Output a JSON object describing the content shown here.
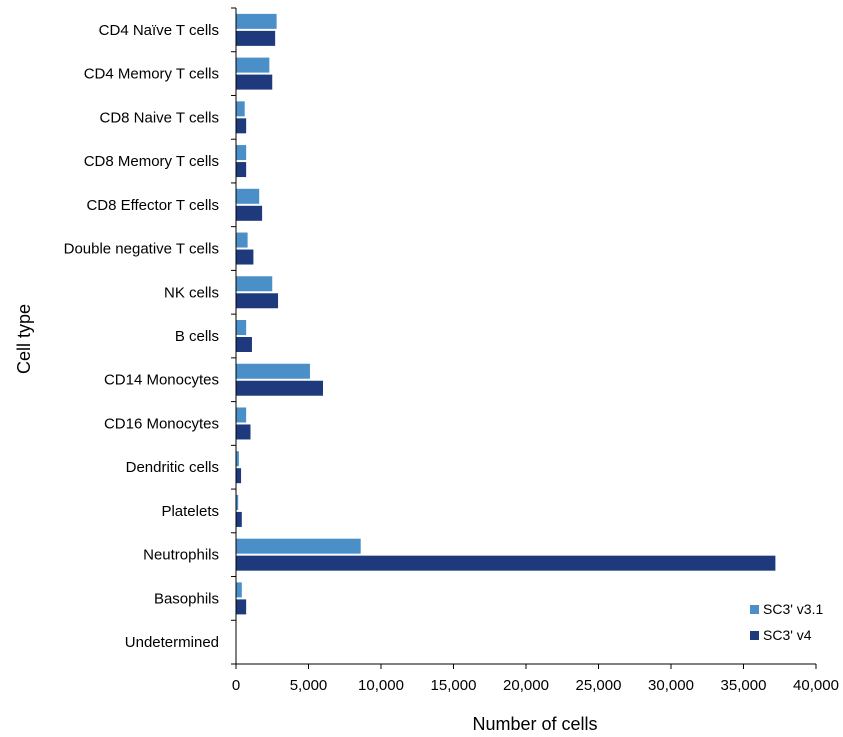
{
  "chart_data": {
    "type": "bar",
    "orientation": "horizontal",
    "categories": [
      "CD4 Naïve T cells",
      "CD4 Memory T cells",
      "CD8 Naive T cells",
      "CD8 Memory T cells",
      "CD8 Effector T cells",
      "Double negative T cells",
      "NK cells",
      "B cells",
      "CD14 Monocytes",
      "CD16 Monocytes",
      "Dendritic cells",
      "Platelets",
      "Neutrophils",
      "Basophils",
      "Undetermined"
    ],
    "series": [
      {
        "name": "SC3' v3.1",
        "color": "#4a8fc7",
        "values": [
          2800,
          2300,
          600,
          700,
          1600,
          800,
          2500,
          700,
          5100,
          700,
          200,
          150,
          8600,
          400,
          0
        ]
      },
      {
        "name": "SC3' v4",
        "color": "#1f3a7c",
        "values": [
          2700,
          2500,
          700,
          700,
          1800,
          1200,
          2900,
          1100,
          6000,
          1000,
          350,
          400,
          37200,
          700,
          0
        ]
      }
    ],
    "xlabel": "Number of cells",
    "ylabel": "Cell type",
    "xlim": [
      0,
      40000
    ],
    "xticks": [
      "0",
      "5,000",
      "10,000",
      "15,000",
      "20,000",
      "25,000",
      "30,000",
      "35,000",
      "40,000"
    ],
    "grid": false,
    "legend_position": "bottom-right"
  }
}
